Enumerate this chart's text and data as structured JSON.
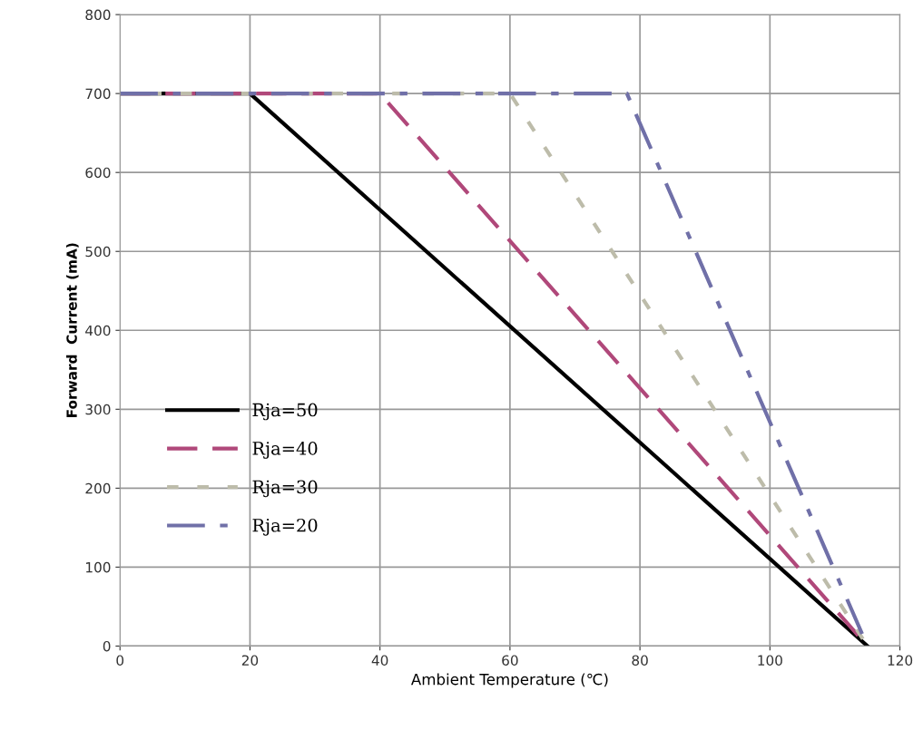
{
  "chart_data": {
    "type": "line",
    "xlabel": "Ambient Temperature (℃)",
    "ylabel": "Forward  Current (mA)",
    "xlim": [
      0,
      120
    ],
    "ylim": [
      0,
      800
    ],
    "xticks": [
      0,
      20,
      40,
      60,
      80,
      100,
      120
    ],
    "yticks": [
      0,
      100,
      200,
      300,
      400,
      500,
      600,
      700,
      800
    ],
    "grid": true,
    "legend": "left",
    "marker": "none",
    "series": [
      {
        "name": "Rja=50",
        "color": "#000000",
        "line_style": "solid",
        "x": [
          0,
          20,
          115
        ],
        "values": [
          700,
          700,
          0
        ]
      },
      {
        "name": "Rja=40",
        "color": "#b0487a",
        "line_style": "dashed",
        "x": [
          0,
          40,
          115
        ],
        "values": [
          700,
          700,
          0
        ]
      },
      {
        "name": "Rja=30",
        "color": "#bdbcaa",
        "line_style": "dotted",
        "x": [
          0,
          60,
          115
        ],
        "values": [
          700,
          700,
          0
        ]
      },
      {
        "name": "Rja=20",
        "color": "#7070a8",
        "line_style": "dashdot",
        "x": [
          0,
          78,
          115
        ],
        "values": [
          700,
          700,
          0
        ]
      }
    ]
  }
}
